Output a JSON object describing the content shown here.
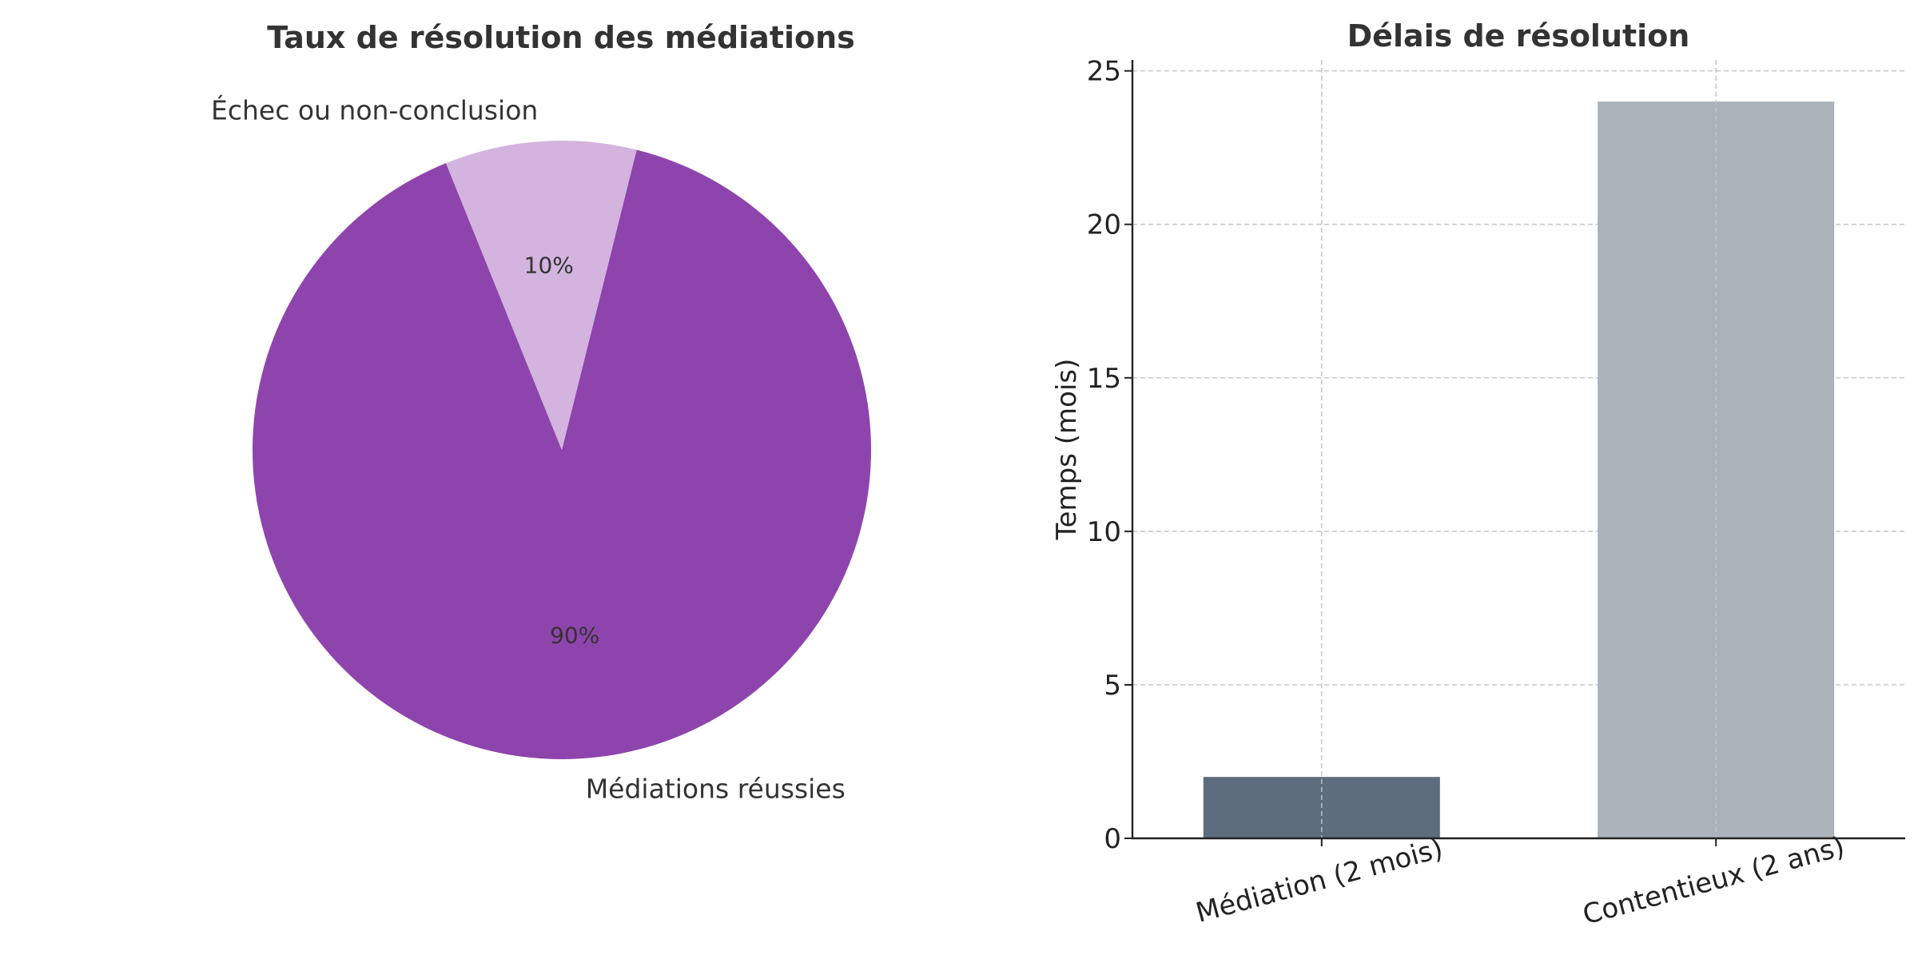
{
  "chart_data": [
    {
      "type": "pie",
      "title": "Taux de résolution des médiations",
      "slices": [
        {
          "label": "Médiations réussies",
          "value": 90,
          "pct_label": "90%",
          "color": "#8e44ad"
        },
        {
          "label": "Échec ou non-conclusion",
          "value": 10,
          "pct_label": "10%",
          "color": "#d2b4de"
        }
      ]
    },
    {
      "type": "bar",
      "title": "Délais de résolution",
      "categories": [
        "Médiation (2 mois)",
        "Contentieux (2 ans)"
      ],
      "values": [
        2,
        24
      ],
      "colors": [
        "#5d6d7e",
        "#abb2b9"
      ],
      "xlabel": "",
      "ylabel": "Temps (mois)",
      "ylim": [
        0,
        25.2
      ],
      "yticks": [
        0,
        5,
        10,
        15,
        20,
        25
      ],
      "grid": true
    }
  ]
}
